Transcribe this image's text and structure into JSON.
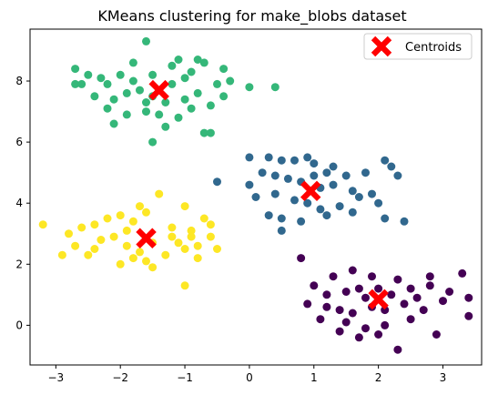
{
  "chart_data": {
    "type": "scatter",
    "title": "KMeans clustering for make_blobs dataset",
    "xlabel": "",
    "ylabel": "",
    "xlim": [
      -3.4,
      3.6
    ],
    "ylim": [
      -1.3,
      9.7
    ],
    "xticks": [
      -3,
      -2,
      -1,
      0,
      1,
      2,
      3
    ],
    "yticks": [
      0,
      2,
      4,
      6,
      8
    ],
    "grid": false,
    "legend": {
      "position": "top-right",
      "entries": [
        "Centroids"
      ]
    },
    "colors": {
      "cluster_purple": "#440154",
      "cluster_blue": "#31688e",
      "cluster_green": "#35b779",
      "cluster_yellow": "#fde725",
      "centroid": "#ff0000"
    },
    "series": [
      {
        "color_key": "cluster_green",
        "points": [
          [
            -1.6,
            9.3
          ],
          [
            -2.7,
            8.4
          ],
          [
            -2.3,
            8.1
          ],
          [
            -2.0,
            8.2
          ],
          [
            -1.8,
            8.0
          ],
          [
            -1.5,
            8.2
          ],
          [
            -1.2,
            8.5
          ],
          [
            -0.9,
            8.3
          ],
          [
            -0.7,
            8.6
          ],
          [
            -0.4,
            8.4
          ],
          [
            0.0,
            7.8
          ],
          [
            0.4,
            7.8
          ],
          [
            -2.6,
            7.9
          ],
          [
            -2.4,
            7.5
          ],
          [
            -2.1,
            7.4
          ],
          [
            -1.9,
            7.6
          ],
          [
            -1.7,
            7.7
          ],
          [
            -1.5,
            7.5
          ],
          [
            -1.3,
            7.3
          ],
          [
            -1.0,
            7.4
          ],
          [
            -0.8,
            7.6
          ],
          [
            -0.6,
            7.2
          ],
          [
            -0.4,
            7.5
          ],
          [
            -2.2,
            7.1
          ],
          [
            -1.9,
            6.9
          ],
          [
            -1.6,
            7.0
          ],
          [
            -1.4,
            6.9
          ],
          [
            -1.1,
            6.8
          ],
          [
            -0.9,
            7.1
          ],
          [
            -2.1,
            6.6
          ],
          [
            -1.3,
            6.5
          ],
          [
            -0.7,
            6.3
          ],
          [
            -1.5,
            6.0
          ],
          [
            -0.6,
            6.3
          ],
          [
            -2.5,
            8.2
          ],
          [
            -1.1,
            8.7
          ],
          [
            -0.8,
            8.7
          ],
          [
            -0.3,
            8.0
          ],
          [
            -1.8,
            8.6
          ],
          [
            -2.2,
            7.9
          ],
          [
            -1.2,
            7.9
          ],
          [
            -0.5,
            7.9
          ],
          [
            -1.6,
            7.3
          ],
          [
            -2.7,
            7.9
          ],
          [
            -1.0,
            8.1
          ]
        ]
      },
      {
        "color_key": "cluster_blue",
        "points": [
          [
            -0.5,
            4.7
          ],
          [
            0.0,
            5.5
          ],
          [
            0.3,
            5.5
          ],
          [
            0.5,
            5.4
          ],
          [
            0.7,
            5.4
          ],
          [
            1.0,
            5.3
          ],
          [
            1.2,
            5.0
          ],
          [
            1.5,
            4.9
          ],
          [
            1.8,
            5.0
          ],
          [
            2.1,
            5.4
          ],
          [
            2.2,
            5.2
          ],
          [
            0.2,
            5.0
          ],
          [
            0.4,
            4.9
          ],
          [
            0.6,
            4.8
          ],
          [
            0.8,
            4.7
          ],
          [
            1.1,
            4.5
          ],
          [
            1.3,
            4.6
          ],
          [
            1.6,
            4.4
          ],
          [
            1.9,
            4.3
          ],
          [
            2.3,
            4.9
          ],
          [
            0.0,
            4.6
          ],
          [
            0.1,
            4.2
          ],
          [
            0.4,
            4.3
          ],
          [
            0.7,
            4.1
          ],
          [
            0.9,
            4.0
          ],
          [
            1.1,
            3.8
          ],
          [
            1.4,
            3.9
          ],
          [
            1.7,
            4.2
          ],
          [
            2.0,
            4.0
          ],
          [
            0.3,
            3.6
          ],
          [
            0.5,
            3.5
          ],
          [
            0.8,
            3.4
          ],
          [
            1.2,
            3.6
          ],
          [
            1.6,
            3.7
          ],
          [
            2.1,
            3.5
          ],
          [
            2.4,
            3.4
          ],
          [
            0.5,
            3.1
          ],
          [
            1.0,
            4.9
          ],
          [
            1.3,
            5.2
          ],
          [
            0.9,
            5.5
          ]
        ]
      },
      {
        "color_key": "cluster_yellow",
        "points": [
          [
            -3.2,
            3.3
          ],
          [
            -2.9,
            2.3
          ],
          [
            -2.8,
            3.0
          ],
          [
            -2.6,
            3.2
          ],
          [
            -2.4,
            3.3
          ],
          [
            -2.2,
            3.5
          ],
          [
            -2.0,
            3.6
          ],
          [
            -1.8,
            3.4
          ],
          [
            -1.6,
            3.7
          ],
          [
            -1.4,
            4.3
          ],
          [
            -1.0,
            3.9
          ],
          [
            -0.7,
            3.5
          ],
          [
            -0.6,
            3.3
          ],
          [
            -2.7,
            2.6
          ],
          [
            -2.3,
            2.8
          ],
          [
            -2.1,
            2.9
          ],
          [
            -1.9,
            2.6
          ],
          [
            -1.7,
            2.4
          ],
          [
            -1.5,
            2.7
          ],
          [
            -1.2,
            2.9
          ],
          [
            -0.9,
            3.1
          ],
          [
            -0.8,
            2.6
          ],
          [
            -0.6,
            2.9
          ],
          [
            -2.0,
            2.0
          ],
          [
            -1.8,
            2.2
          ],
          [
            -1.6,
            2.1
          ],
          [
            -1.3,
            2.3
          ],
          [
            -1.0,
            2.5
          ],
          [
            -0.8,
            2.2
          ],
          [
            -0.5,
            2.5
          ],
          [
            -1.5,
            1.9
          ],
          [
            -1.0,
            1.3
          ],
          [
            -2.4,
            2.5
          ],
          [
            -1.2,
            3.2
          ],
          [
            -1.9,
            3.1
          ],
          [
            -2.5,
            2.3
          ],
          [
            -1.7,
            3.9
          ],
          [
            -1.1,
            2.7
          ],
          [
            -0.9,
            2.9
          ]
        ]
      },
      {
        "color_key": "cluster_purple",
        "points": [
          [
            0.8,
            2.2
          ],
          [
            1.3,
            1.6
          ],
          [
            1.6,
            1.8
          ],
          [
            1.9,
            1.6
          ],
          [
            2.3,
            1.5
          ],
          [
            2.8,
            1.6
          ],
          [
            3.3,
            1.7
          ],
          [
            1.0,
            1.3
          ],
          [
            1.2,
            1.0
          ],
          [
            1.5,
            1.1
          ],
          [
            1.7,
            1.2
          ],
          [
            2.0,
            1.2
          ],
          [
            2.2,
            1.0
          ],
          [
            2.5,
            1.2
          ],
          [
            2.8,
            1.3
          ],
          [
            3.1,
            1.1
          ],
          [
            3.4,
            0.9
          ],
          [
            0.9,
            0.7
          ],
          [
            1.2,
            0.6
          ],
          [
            1.4,
            0.5
          ],
          [
            1.6,
            0.4
          ],
          [
            1.9,
            0.6
          ],
          [
            2.1,
            0.5
          ],
          [
            2.4,
            0.7
          ],
          [
            2.7,
            0.5
          ],
          [
            3.0,
            0.8
          ],
          [
            1.1,
            0.2
          ],
          [
            1.5,
            0.1
          ],
          [
            1.8,
            -0.1
          ],
          [
            2.1,
            0.0
          ],
          [
            2.5,
            0.2
          ],
          [
            1.4,
            -0.2
          ],
          [
            2.0,
            -0.3
          ],
          [
            2.9,
            -0.3
          ],
          [
            1.7,
            -0.4
          ],
          [
            2.3,
            -0.8
          ],
          [
            3.4,
            0.3
          ],
          [
            2.6,
            0.9
          ],
          [
            1.8,
            0.9
          ]
        ]
      }
    ],
    "centroids": [
      [
        -1.4,
        7.7
      ],
      [
        0.95,
        4.4
      ],
      [
        -1.6,
        2.85
      ],
      [
        2.0,
        0.85
      ]
    ]
  }
}
